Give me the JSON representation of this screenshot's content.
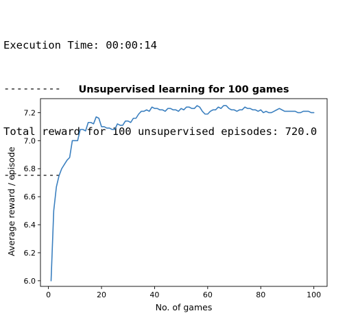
{
  "console": {
    "lines": [
      "Execution Time: 00:00:14",
      "---------",
      "Total reward for 100 unsupervised episodes: 720.0",
      "---------"
    ]
  },
  "chart_data": {
    "type": "line",
    "title": "Unsupervised learning for 100 games",
    "xlabel": "No. of games",
    "ylabel": "Average reward / episode",
    "xlim": [
      -3,
      105
    ],
    "ylim": [
      5.96,
      7.3
    ],
    "xticks": [
      0,
      20,
      40,
      60,
      80,
      100
    ],
    "yticks": [
      6.0,
      6.2,
      6.4,
      6.6,
      6.8,
      7.0,
      7.2
    ],
    "xtick_labels": [
      "0",
      "20",
      "40",
      "60",
      "80",
      "100"
    ],
    "ytick_labels": [
      "6.0",
      "6.2",
      "6.4",
      "6.6",
      "6.8",
      "7.0",
      "7.2"
    ],
    "grid": false,
    "line_color": "#3a7fbf",
    "series": [
      {
        "x": [
          1,
          2,
          3,
          4,
          5,
          6,
          7,
          8,
          9,
          10,
          11,
          12,
          13,
          14,
          15,
          16,
          17,
          18,
          19,
          20,
          21,
          22,
          23,
          24,
          25,
          26,
          27,
          28,
          29,
          30,
          31,
          32,
          33,
          34,
          35,
          36,
          37,
          38,
          39,
          40,
          41,
          42,
          43,
          44,
          45,
          46,
          47,
          48,
          49,
          50,
          51,
          52,
          53,
          54,
          55,
          56,
          57,
          58,
          59,
          60,
          61,
          62,
          63,
          64,
          65,
          66,
          67,
          68,
          69,
          70,
          71,
          72,
          73,
          74,
          75,
          76,
          77,
          78,
          79,
          80,
          81,
          82,
          83,
          84,
          85,
          86,
          87,
          88,
          89,
          90,
          91,
          92,
          93,
          94,
          95,
          96,
          97,
          98,
          99,
          100
        ],
        "y": [
          6.0,
          6.5,
          6.67,
          6.75,
          6.8,
          6.83,
          6.86,
          6.88,
          7.0,
          7.0,
          7.0,
          7.08,
          7.08,
          7.07,
          7.13,
          7.13,
          7.12,
          7.17,
          7.16,
          7.1,
          7.1,
          7.09,
          7.09,
          7.08,
          7.08,
          7.12,
          7.11,
          7.11,
          7.14,
          7.14,
          7.13,
          7.16,
          7.16,
          7.19,
          7.21,
          7.21,
          7.22,
          7.21,
          7.24,
          7.23,
          7.23,
          7.22,
          7.22,
          7.21,
          7.23,
          7.23,
          7.22,
          7.22,
          7.21,
          7.23,
          7.22,
          7.24,
          7.24,
          7.23,
          7.23,
          7.25,
          7.24,
          7.21,
          7.19,
          7.19,
          7.21,
          7.22,
          7.22,
          7.24,
          7.23,
          7.25,
          7.25,
          7.23,
          7.22,
          7.22,
          7.21,
          7.22,
          7.22,
          7.24,
          7.23,
          7.23,
          7.22,
          7.22,
          7.21,
          7.22,
          7.2,
          7.21,
          7.2,
          7.2,
          7.21,
          7.22,
          7.23,
          7.22,
          7.21,
          7.21,
          7.21,
          7.21,
          7.21,
          7.2,
          7.2,
          7.21,
          7.21,
          7.21,
          7.2,
          7.2
        ]
      }
    ]
  }
}
